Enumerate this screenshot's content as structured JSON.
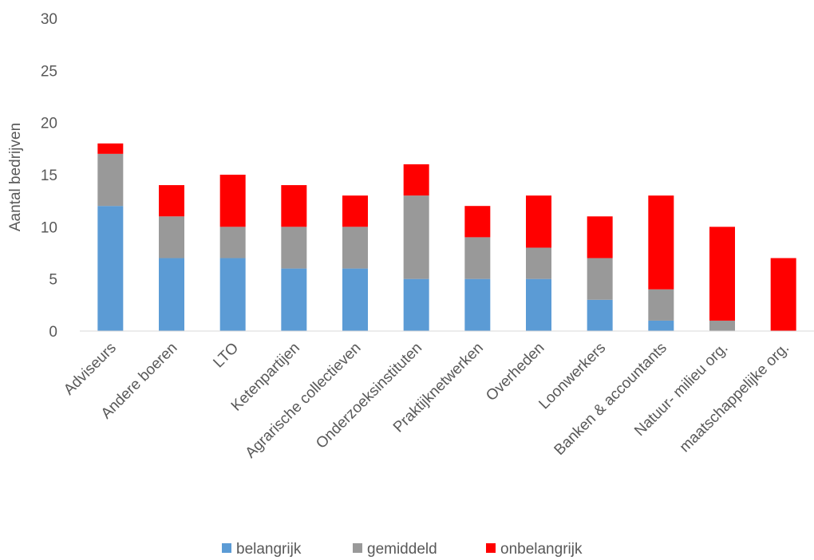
{
  "chart_data": {
    "type": "bar",
    "stacked": true,
    "categories": [
      "Adviseurs",
      "Andere boeren",
      "LTO",
      "Ketenpartijen",
      "Agrarische collectieven",
      "Onderzoeksinstituten",
      "Praktijknetwerken",
      "Overheden",
      "Loonwerkers",
      "Banken & accountants",
      "Natuur- milieu org.",
      "maatschappelijke org."
    ],
    "series": [
      {
        "name": "belangrijk",
        "color": "#5b9bd5",
        "values": [
          12,
          7,
          7,
          6,
          6,
          5,
          5,
          5,
          3,
          1,
          0,
          0
        ]
      },
      {
        "name": "gemiddeld",
        "color": "#999999",
        "values": [
          5,
          4,
          3,
          4,
          4,
          8,
          4,
          3,
          4,
          3,
          1,
          0
        ]
      },
      {
        "name": "onbelangrijk",
        "color": "#ff0000",
        "values": [
          1,
          3,
          5,
          4,
          3,
          3,
          3,
          5,
          4,
          9,
          9,
          7
        ]
      }
    ],
    "ylabel": "Aantal bedrijven",
    "xlabel": "",
    "ylim": [
      0,
      30
    ],
    "yticks": [
      0,
      5,
      10,
      15,
      20,
      25,
      30
    ],
    "grid": false,
    "legend": "bottom"
  }
}
